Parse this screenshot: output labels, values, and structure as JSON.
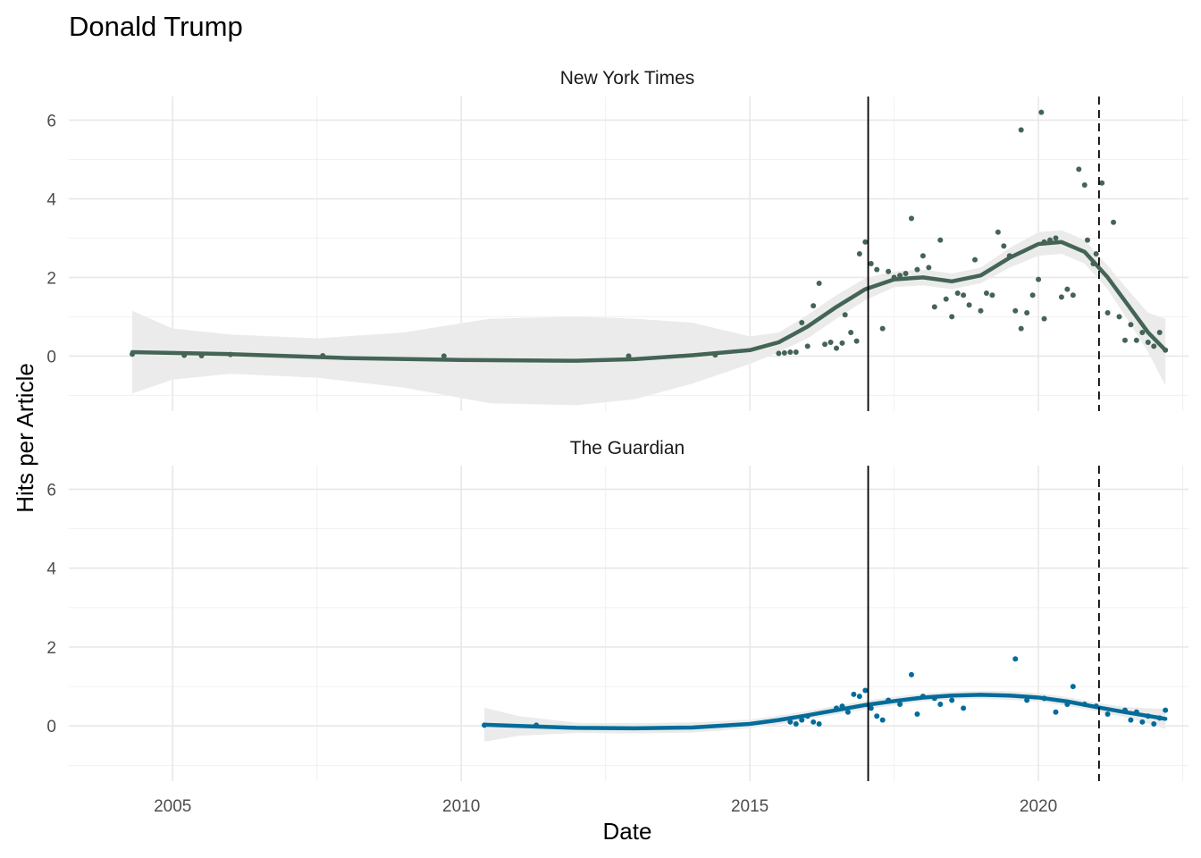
{
  "chart_data": {
    "type": "scatter",
    "title": "Donald Trump",
    "xlabel": "Date",
    "ylabel": "Hits per Article",
    "x_range": [
      2003.2,
      2022.6
    ],
    "x_ticks": [
      "2005",
      "2010",
      "2015",
      "2020"
    ],
    "y_range": [
      -1.4,
      6.6
    ],
    "y_ticks": [
      "0",
      "2",
      "4",
      "6"
    ],
    "grid": true,
    "legend": "none",
    "reference_lines": [
      {
        "x": 2017.05,
        "style": "solid"
      },
      {
        "x": 2021.05,
        "style": "dashed"
      }
    ],
    "panels": [
      {
        "name": "New York Times",
        "color": "#446455",
        "points": [
          [
            2004.3,
            0.05
          ],
          [
            2005.2,
            0.02
          ],
          [
            2005.5,
            0.01
          ],
          [
            2006.0,
            0.04
          ],
          [
            2007.6,
            0.01
          ],
          [
            2009.7,
            0.0
          ],
          [
            2012.9,
            0.0
          ],
          [
            2014.4,
            0.03
          ],
          [
            2015.5,
            0.07
          ],
          [
            2015.6,
            0.08
          ],
          [
            2015.7,
            0.1
          ],
          [
            2015.8,
            0.1
          ],
          [
            2015.9,
            0.85
          ],
          [
            2016.0,
            0.25
          ],
          [
            2016.1,
            1.28
          ],
          [
            2016.2,
            1.85
          ],
          [
            2016.3,
            0.3
          ],
          [
            2016.4,
            0.35
          ],
          [
            2016.5,
            0.2
          ],
          [
            2016.6,
            0.33
          ],
          [
            2016.65,
            1.05
          ],
          [
            2016.75,
            0.6
          ],
          [
            2016.85,
            0.38
          ],
          [
            2016.9,
            2.6
          ],
          [
            2017.0,
            2.9
          ],
          [
            2017.1,
            2.35
          ],
          [
            2017.2,
            2.2
          ],
          [
            2017.3,
            0.7
          ],
          [
            2017.4,
            2.15
          ],
          [
            2017.5,
            2.0
          ],
          [
            2017.6,
            2.05
          ],
          [
            2017.7,
            2.1
          ],
          [
            2017.8,
            3.5
          ],
          [
            2017.9,
            2.2
          ],
          [
            2018.0,
            2.55
          ],
          [
            2018.1,
            2.25
          ],
          [
            2018.2,
            1.25
          ],
          [
            2018.3,
            2.95
          ],
          [
            2018.4,
            1.45
          ],
          [
            2018.5,
            1.0
          ],
          [
            2018.6,
            1.6
          ],
          [
            2018.7,
            1.55
          ],
          [
            2018.8,
            1.3
          ],
          [
            2018.9,
            2.45
          ],
          [
            2019.0,
            1.15
          ],
          [
            2019.1,
            1.6
          ],
          [
            2019.2,
            1.55
          ],
          [
            2019.3,
            3.15
          ],
          [
            2019.4,
            2.8
          ],
          [
            2019.5,
            2.55
          ],
          [
            2019.6,
            1.15
          ],
          [
            2019.7,
            0.7
          ],
          [
            2019.8,
            1.1
          ],
          [
            2019.9,
            1.55
          ],
          [
            2020.0,
            1.95
          ],
          [
            2020.1,
            0.95
          ],
          [
            2019.7,
            5.75
          ],
          [
            2020.05,
            6.2
          ],
          [
            2020.1,
            2.9
          ],
          [
            2020.2,
            2.95
          ],
          [
            2020.3,
            3.0
          ],
          [
            2020.4,
            1.5
          ],
          [
            2020.5,
            1.7
          ],
          [
            2020.6,
            1.55
          ],
          [
            2020.7,
            4.75
          ],
          [
            2020.8,
            4.35
          ],
          [
            2020.85,
            2.95
          ],
          [
            2020.95,
            2.35
          ],
          [
            2021.0,
            2.6
          ],
          [
            2021.1,
            4.4
          ],
          [
            2021.2,
            1.1
          ],
          [
            2021.3,
            3.4
          ],
          [
            2021.4,
            1.0
          ],
          [
            2021.5,
            0.4
          ],
          [
            2021.6,
            0.8
          ],
          [
            2021.7,
            0.4
          ],
          [
            2021.8,
            0.6
          ],
          [
            2021.9,
            0.35
          ],
          [
            2022.0,
            0.25
          ],
          [
            2022.1,
            0.6
          ],
          [
            2022.2,
            0.15
          ]
        ],
        "smooth": [
          [
            2004.3,
            0.1
          ],
          [
            2006.0,
            0.05
          ],
          [
            2008.0,
            -0.05
          ],
          [
            2010.0,
            -0.1
          ],
          [
            2012.0,
            -0.12
          ],
          [
            2013.0,
            -0.08
          ],
          [
            2014.0,
            0.02
          ],
          [
            2015.0,
            0.15
          ],
          [
            2015.5,
            0.35
          ],
          [
            2016.0,
            0.75
          ],
          [
            2016.5,
            1.25
          ],
          [
            2017.0,
            1.7
          ],
          [
            2017.5,
            1.95
          ],
          [
            2018.0,
            2.0
          ],
          [
            2018.5,
            1.9
          ],
          [
            2019.0,
            2.05
          ],
          [
            2019.5,
            2.5
          ],
          [
            2020.0,
            2.85
          ],
          [
            2020.4,
            2.9
          ],
          [
            2020.8,
            2.65
          ],
          [
            2021.2,
            2.0
          ],
          [
            2021.6,
            1.2
          ],
          [
            2021.9,
            0.6
          ],
          [
            2022.2,
            0.15
          ]
        ],
        "band": [
          [
            2004.3,
            -0.95,
            1.15
          ],
          [
            2005.0,
            -0.6,
            0.7
          ],
          [
            2006.0,
            -0.45,
            0.55
          ],
          [
            2007.5,
            -0.55,
            0.45
          ],
          [
            2009.0,
            -0.8,
            0.6
          ],
          [
            2010.5,
            -1.2,
            0.95
          ],
          [
            2012.0,
            -1.25,
            1.0
          ],
          [
            2013.0,
            -1.1,
            0.95
          ],
          [
            2014.0,
            -0.7,
            0.85
          ],
          [
            2015.0,
            -0.2,
            0.5
          ],
          [
            2015.5,
            0.1,
            0.6
          ],
          [
            2016.0,
            0.45,
            1.05
          ],
          [
            2016.5,
            0.95,
            1.55
          ],
          [
            2017.0,
            1.42,
            1.98
          ],
          [
            2017.5,
            1.75,
            2.15
          ],
          [
            2018.0,
            1.8,
            2.2
          ],
          [
            2018.5,
            1.7,
            2.1
          ],
          [
            2019.0,
            1.85,
            2.25
          ],
          [
            2019.5,
            2.25,
            2.75
          ],
          [
            2020.0,
            2.55,
            3.15
          ],
          [
            2020.4,
            2.6,
            3.2
          ],
          [
            2020.8,
            2.35,
            2.95
          ],
          [
            2021.2,
            1.7,
            2.3
          ],
          [
            2021.6,
            0.8,
            1.6
          ],
          [
            2021.9,
            0.1,
            1.1
          ],
          [
            2022.2,
            -0.75,
            0.95
          ]
        ]
      },
      {
        "name": "The Guardian",
        "color": "#046C9A",
        "points": [
          [
            2010.4,
            0.02
          ],
          [
            2011.3,
            0.02
          ],
          [
            2015.7,
            0.1
          ],
          [
            2015.8,
            0.05
          ],
          [
            2015.9,
            0.15
          ],
          [
            2016.0,
            0.25
          ],
          [
            2016.1,
            0.1
          ],
          [
            2016.2,
            0.05
          ],
          [
            2016.5,
            0.45
          ],
          [
            2016.6,
            0.5
          ],
          [
            2016.7,
            0.35
          ],
          [
            2016.8,
            0.8
          ],
          [
            2016.9,
            0.75
          ],
          [
            2017.0,
            0.9
          ],
          [
            2017.1,
            0.45
          ],
          [
            2017.2,
            0.25
          ],
          [
            2017.3,
            0.15
          ],
          [
            2017.4,
            0.65
          ],
          [
            2017.6,
            0.55
          ],
          [
            2017.8,
            1.3
          ],
          [
            2017.9,
            0.3
          ],
          [
            2018.0,
            0.75
          ],
          [
            2018.2,
            0.7
          ],
          [
            2018.3,
            0.55
          ],
          [
            2018.5,
            0.65
          ],
          [
            2018.7,
            0.45
          ],
          [
            2019.6,
            1.7
          ],
          [
            2019.8,
            0.65
          ],
          [
            2020.1,
            0.7
          ],
          [
            2020.3,
            0.35
          ],
          [
            2020.5,
            0.55
          ],
          [
            2020.6,
            1.0
          ],
          [
            2020.8,
            0.55
          ],
          [
            2021.0,
            0.5
          ],
          [
            2021.2,
            0.3
          ],
          [
            2021.5,
            0.4
          ],
          [
            2021.6,
            0.15
          ],
          [
            2021.7,
            0.35
          ],
          [
            2021.8,
            0.1
          ],
          [
            2021.9,
            0.25
          ],
          [
            2022.0,
            0.05
          ],
          [
            2022.1,
            0.2
          ],
          [
            2022.2,
            0.4
          ]
        ],
        "smooth": [
          [
            2010.4,
            0.03
          ],
          [
            2011.0,
            0.0
          ],
          [
            2012.0,
            -0.05
          ],
          [
            2013.0,
            -0.06
          ],
          [
            2014.0,
            -0.04
          ],
          [
            2015.0,
            0.05
          ],
          [
            2015.5,
            0.15
          ],
          [
            2016.0,
            0.27
          ],
          [
            2016.5,
            0.4
          ],
          [
            2017.0,
            0.53
          ],
          [
            2017.5,
            0.63
          ],
          [
            2018.0,
            0.72
          ],
          [
            2018.5,
            0.77
          ],
          [
            2019.0,
            0.79
          ],
          [
            2019.5,
            0.77
          ],
          [
            2020.0,
            0.72
          ],
          [
            2020.5,
            0.62
          ],
          [
            2021.0,
            0.48
          ],
          [
            2021.5,
            0.35
          ],
          [
            2022.0,
            0.23
          ],
          [
            2022.2,
            0.18
          ]
        ],
        "band": [
          [
            2010.4,
            -0.4,
            0.46
          ],
          [
            2011.0,
            -0.25,
            0.25
          ],
          [
            2012.0,
            -0.18,
            0.08
          ],
          [
            2013.0,
            -0.19,
            0.07
          ],
          [
            2014.0,
            -0.17,
            0.09
          ],
          [
            2015.0,
            -0.06,
            0.16
          ],
          [
            2015.5,
            0.04,
            0.26
          ],
          [
            2016.0,
            0.16,
            0.38
          ],
          [
            2016.5,
            0.29,
            0.51
          ],
          [
            2017.0,
            0.42,
            0.64
          ],
          [
            2017.5,
            0.52,
            0.74
          ],
          [
            2018.0,
            0.62,
            0.82
          ],
          [
            2018.5,
            0.67,
            0.87
          ],
          [
            2019.0,
            0.69,
            0.89
          ],
          [
            2019.5,
            0.66,
            0.88
          ],
          [
            2020.0,
            0.61,
            0.83
          ],
          [
            2020.5,
            0.51,
            0.73
          ],
          [
            2021.0,
            0.37,
            0.59
          ],
          [
            2021.5,
            0.22,
            0.48
          ],
          [
            2022.0,
            0.02,
            0.44
          ],
          [
            2022.2,
            -0.08,
            0.44
          ]
        ]
      }
    ]
  }
}
